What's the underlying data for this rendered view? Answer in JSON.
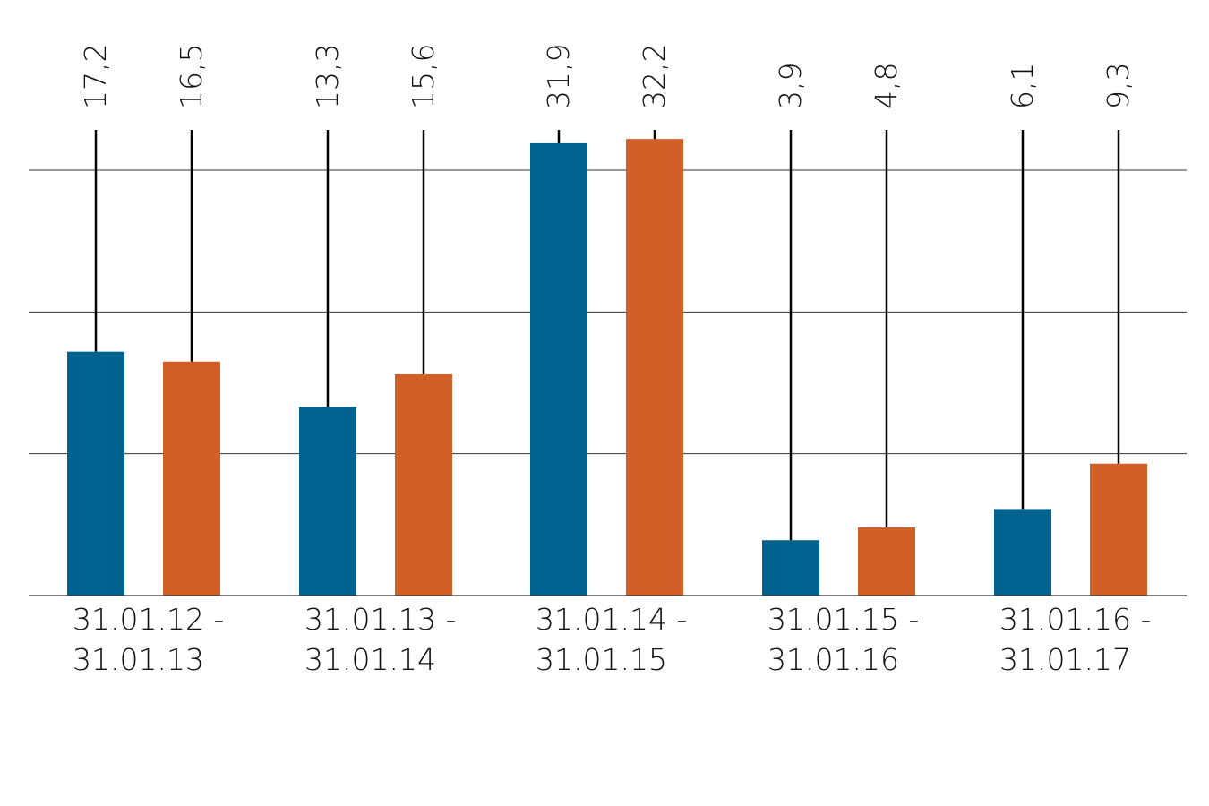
{
  "chart_data": {
    "type": "bar",
    "categories": [
      [
        "31.01.12 -",
        "31.01.13"
      ],
      [
        "31.01.13 -",
        "31.01.14"
      ],
      [
        "31.01.14 -",
        "31.01.15"
      ],
      [
        "31.01.15 -",
        "31.01.16"
      ],
      [
        "31.01.16 -",
        "31.01.17"
      ]
    ],
    "series": [
      {
        "color": "#00628f",
        "values": [
          17.2,
          13.3,
          31.9,
          3.9,
          6.1
        ],
        "labels": [
          "17,2",
          "13,3",
          "31,9",
          "3,9",
          "6,1"
        ]
      },
      {
        "color": "#d35f28",
        "values": [
          16.5,
          15.6,
          32.2,
          4.8,
          9.3
        ],
        "labels": [
          "16,5",
          "15,6",
          "32,2",
          "4,8",
          "9,3"
        ]
      }
    ],
    "ylim": [
      0,
      30
    ],
    "gridlines": [
      0,
      10,
      20,
      30
    ],
    "grid": true,
    "legend": "none",
    "title": "",
    "xlabel": "",
    "ylabel": ""
  }
}
